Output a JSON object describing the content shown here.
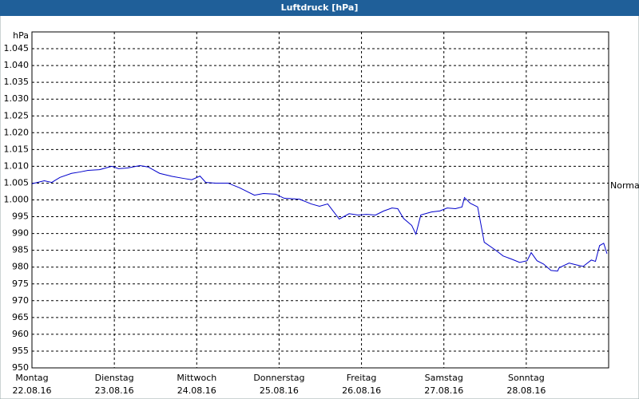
{
  "chart_data": {
    "type": "line",
    "title": "Luftdruck [hPa]",
    "y_label": "hPa",
    "annotation": "Normal",
    "xlim": [
      0,
      7
    ],
    "xticks": [
      0,
      1,
      2,
      3,
      4,
      5,
      6
    ],
    "xtick_days": [
      "Montag",
      "Dienstag",
      "Mittwoch",
      "Donnerstag",
      "Freitag",
      "Samstag",
      "Sonntag"
    ],
    "xtick_dates": [
      "22.08.16",
      "23.08.16",
      "24.08.16",
      "25.08.16",
      "26.08.16",
      "27.08.16",
      "28.08.16"
    ],
    "ylim": [
      950,
      1050
    ],
    "yticks": [
      950,
      955,
      960,
      965,
      970,
      975,
      980,
      985,
      990,
      995,
      {
        "value": 1000,
        "label": "1.000"
      },
      {
        "value": 1005,
        "label": "1.005"
      },
      {
        "value": 1010,
        "label": "1.010"
      },
      {
        "value": 1015,
        "label": "1.015"
      },
      {
        "value": 1020,
        "label": "1.020"
      },
      {
        "value": 1025,
        "label": "1.025"
      },
      {
        "value": 1030,
        "label": "1.030"
      },
      {
        "value": 1035,
        "label": "1.035"
      },
      {
        "value": 1040,
        "label": "1.040"
      },
      {
        "value": 1045,
        "label": "1.045"
      }
    ],
    "grid": true,
    "color": "#0000cc",
    "x": [
      0,
      0.15,
      0.24,
      0.34,
      0.48,
      0.58,
      0.68,
      0.82,
      0.97,
      1.05,
      1.16,
      1.31,
      1.41,
      1.55,
      1.7,
      1.84,
      1.94,
      2.04,
      2.11,
      2.23,
      2.38,
      2.52,
      2.7,
      2.81,
      2.96,
      3.06,
      3.25,
      3.39,
      3.49,
      3.59,
      3.73,
      3.85,
      3.96,
      4.06,
      4.17,
      4.27,
      4.37,
      4.44,
      4.51,
      4.61,
      4.66,
      4.72,
      4.85,
      4.95,
      5.04,
      5.14,
      5.22,
      5.25,
      5.32,
      5.41,
      5.49,
      5.63,
      5.72,
      5.82,
      5.92,
      6.01,
      6.06,
      6.13,
      6.21,
      6.3,
      6.38,
      6.4,
      6.52,
      6.6,
      6.69,
      6.79,
      6.84,
      6.89,
      6.94,
      6.98
    ],
    "values": [
      1004.8,
      1005.7,
      1005.2,
      1006.7,
      1007.9,
      1008.3,
      1008.8,
      1009.0,
      1010.0,
      1009.3,
      1009.5,
      1010.2,
      1009.8,
      1007.9,
      1007.0,
      1006.4,
      1006.0,
      1007.1,
      1005.2,
      1005.0,
      1005.0,
      1003.6,
      1001.4,
      1001.9,
      1001.7,
      1000.5,
      1000.2,
      998.8,
      998.1,
      998.8,
      994.3,
      995.9,
      995.5,
      995.7,
      995.5,
      996.7,
      997.6,
      997.4,
      994.5,
      992.4,
      989.8,
      995.5,
      996.4,
      996.7,
      997.6,
      997.4,
      997.9,
      1000.7,
      999.0,
      997.9,
      987.4,
      985.0,
      983.3,
      982.4,
      981.4,
      981.9,
      984.3,
      981.9,
      980.9,
      979.0,
      978.8,
      979.8,
      981.2,
      980.7,
      980.2,
      982.1,
      981.7,
      986.4,
      987.1,
      984.0
    ]
  }
}
